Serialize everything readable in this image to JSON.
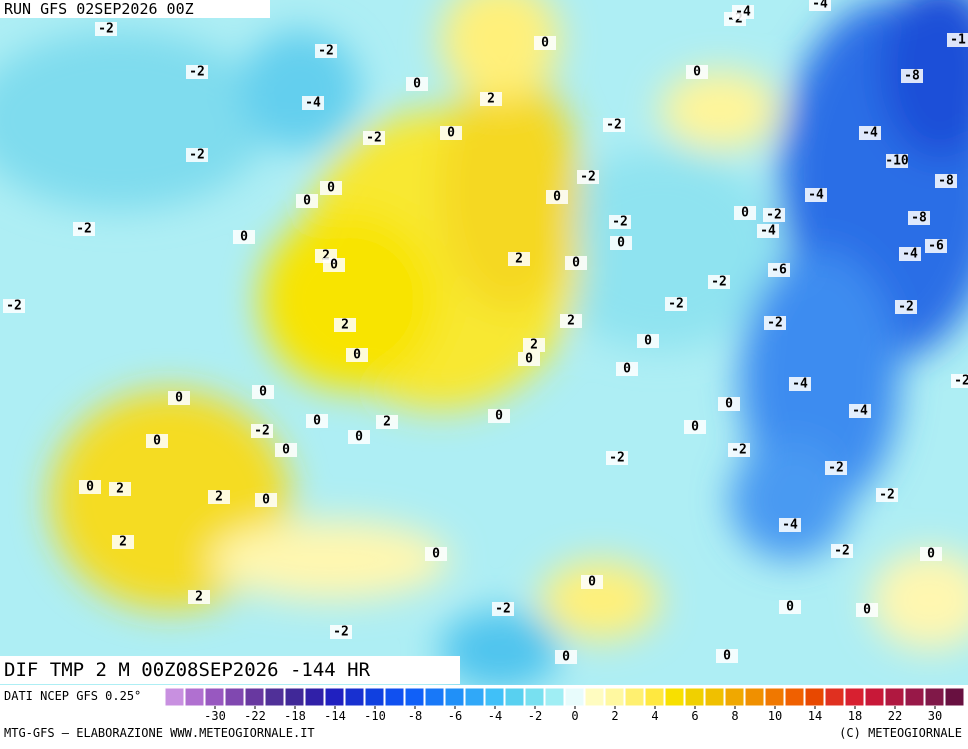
{
  "header": {
    "run": "RUN GFS 02SEP2026 00Z",
    "field": "DIF TMP 2 M 00Z08SEP2026 -144 HR"
  },
  "footer": {
    "source": "DATI NCEP GFS 0.25°",
    "credit": "MTG-GFS — ELABORAZIONE WWW.METEOGIORNALE.IT",
    "copyright": "(C) METEOGIORNALE"
  },
  "contour_labels": [
    -2,
    -2,
    -2,
    -4,
    -2,
    -2,
    -2,
    -2,
    0,
    0,
    2,
    0,
    0,
    0,
    0,
    2,
    0,
    2,
    0,
    0,
    -2,
    -2,
    0,
    -2,
    0,
    -2,
    -4,
    -4,
    -1,
    -8,
    -4,
    -10,
    -8,
    -4,
    -2,
    -4,
    0,
    -8,
    -6,
    -4,
    -6,
    -2,
    -2,
    -2,
    -2,
    2,
    0,
    2,
    2,
    0,
    0,
    0,
    -4,
    -2,
    0,
    0,
    0,
    2,
    0,
    -4,
    0,
    0,
    -2,
    0,
    0,
    0,
    -2,
    -2,
    -2,
    0,
    2,
    2,
    0,
    -2,
    2,
    -4,
    -2,
    0,
    0,
    0,
    2,
    0,
    0,
    -2,
    -2,
    0,
    0
  ],
  "colorbar": {
    "colors": [
      "#c890e0",
      "#b070d0",
      "#9858c0",
      "#8048b0",
      "#6838a0",
      "#503098",
      "#402898",
      "#3020a8",
      "#2020c0",
      "#1830d0",
      "#1040e0",
      "#1050f0",
      "#1060f8",
      "#1878f8",
      "#2090f8",
      "#30a8f8",
      "#40c0f8",
      "#58d0f0",
      "#78e0f0",
      "#a0eef4",
      "#e8fcfc",
      "#fffcc0",
      "#fff8a0",
      "#fff070",
      "#ffe840",
      "#f8e000",
      "#f0d000",
      "#f0c000",
      "#f0a800",
      "#f09000",
      "#f07800",
      "#f06000",
      "#e84800",
      "#e03020",
      "#d82030",
      "#c81838",
      "#b01840",
      "#981848",
      "#801848",
      "#681040"
    ],
    "ticks": [
      -30,
      -22,
      -18,
      -14,
      -10,
      -8,
      -6,
      -4,
      -2,
      0,
      2,
      4,
      6,
      8,
      10,
      14,
      18,
      22,
      30
    ]
  }
}
